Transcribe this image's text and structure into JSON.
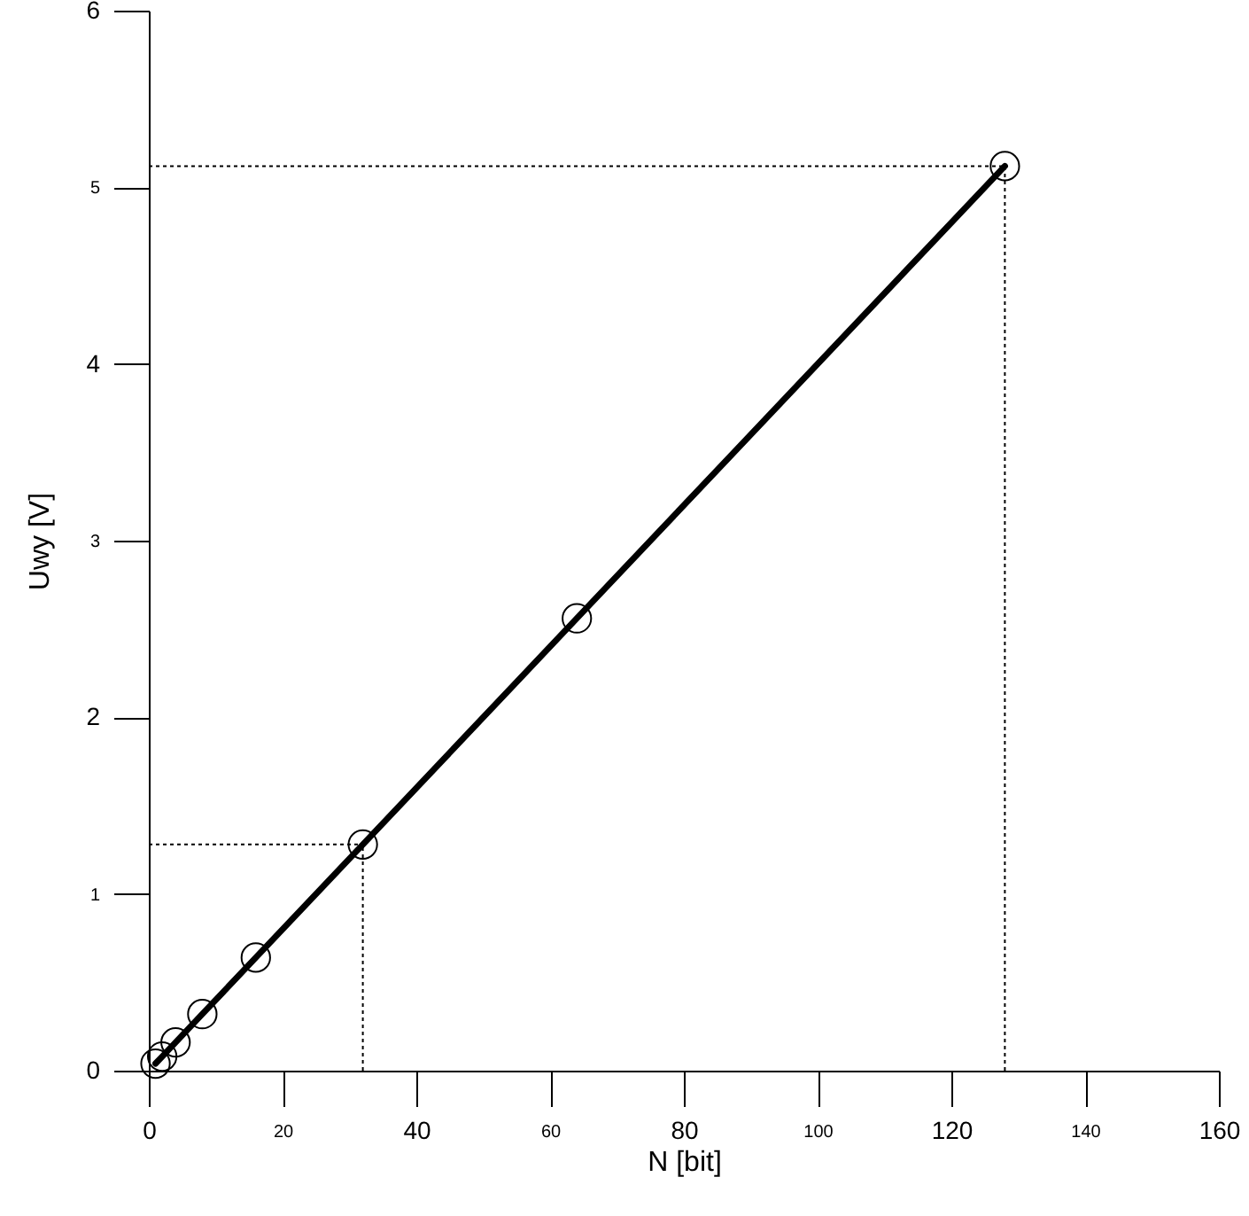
{
  "chart_data": {
    "type": "line",
    "xlabel": "N [bit]",
    "ylabel": "Uwy [V]",
    "x": [
      1,
      2,
      4,
      8,
      16,
      32,
      64,
      128
    ],
    "series": [
      {
        "color": "#000000",
        "values": [
          0.04,
          0.08,
          0.16,
          0.32,
          0.64,
          1.28,
          2.56,
          5.12
        ]
      }
    ],
    "xlim": [
      0,
      160
    ],
    "xticks": [
      0,
      20,
      40,
      60,
      80,
      100,
      120,
      140,
      160
    ],
    "ylim": [
      0,
      6
    ],
    "yticks": [
      0,
      1,
      2,
      3,
      4,
      5,
      6
    ],
    "marker": "circle",
    "line_style": "solid",
    "grid": false,
    "ref_lines": [
      {
        "axis": "x",
        "value": 32,
        "line_style": "dotted",
        "color": "#000000"
      },
      {
        "axis": "y",
        "value": 1.28,
        "line_style": "dotted",
        "color": "#000000"
      },
      {
        "axis": "x",
        "value": 128,
        "line_style": "dotted",
        "color": "#000000"
      },
      {
        "axis": "y",
        "value": 5.12,
        "line_style": "dotted",
        "color": "#000000"
      }
    ]
  }
}
